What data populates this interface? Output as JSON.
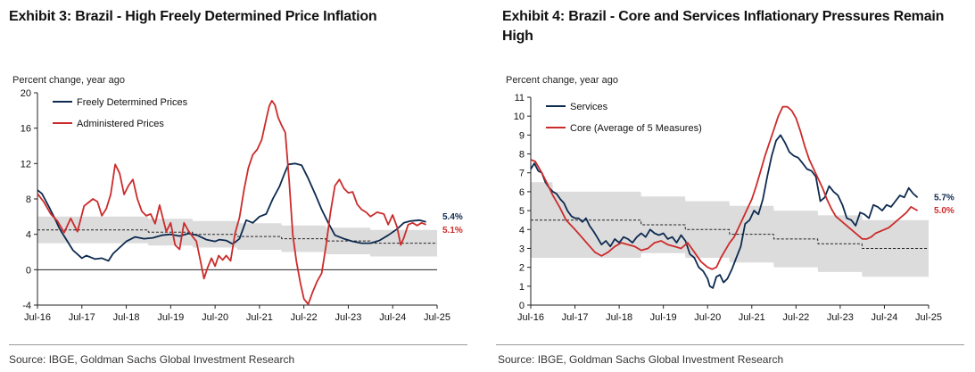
{
  "left": {
    "title": "Exhibit 3: Brazil - High Freely Determined Price Inflation",
    "units": "Percent change, year ago",
    "source": "Source: IBGE, Goldman Sachs Global Investment Research"
  },
  "right": {
    "title": "Exhibit 4: Brazil - Core and Services Inflationary Pressures Remain High",
    "units": "Percent change, year ago",
    "source": "Source: IBGE, Goldman Sachs Global Investment Research"
  },
  "chart_data": [
    {
      "type": "line",
      "title": "Exhibit 3: Brazil - High Freely Determined Price Inflation",
      "ylabel": "Percent change, year ago",
      "ylim": [
        -4,
        20
      ],
      "yticks": [
        -4,
        0,
        4,
        8,
        12,
        16,
        20
      ],
      "xlim": [
        2016.5,
        2025.5
      ],
      "xticks": [
        2016.5,
        2017.5,
        2018.5,
        2019.5,
        2020.5,
        2021.5,
        2022.5,
        2023.5,
        2024.5,
        2025.5
      ],
      "xticklabels": [
        "Jul-16",
        "Jul-17",
        "Jul-18",
        "Jul-19",
        "Jul-20",
        "Jul-21",
        "Jul-22",
        "Jul-23",
        "Jul-24",
        "Jul-25"
      ],
      "legend": "top-left",
      "band": {
        "x": [
          2016.5,
          2016.99,
          2017.0,
          2017.99,
          2018.0,
          2018.99,
          2019.0,
          2019.99,
          2020.0,
          2020.99,
          2021.0,
          2021.99,
          2022.0,
          2022.99,
          2023.0,
          2023.99,
          2024.0,
          2025.5
        ],
        "lower": [
          3.0,
          3.0,
          3.0,
          3.0,
          3.0,
          3.0,
          2.75,
          2.75,
          2.5,
          2.5,
          2.25,
          2.25,
          2.0,
          2.0,
          1.75,
          1.75,
          1.5,
          1.5
        ],
        "upper": [
          6.0,
          6.0,
          6.0,
          6.0,
          6.0,
          6.0,
          5.75,
          5.75,
          5.5,
          5.5,
          5.25,
          5.25,
          5.0,
          5.0,
          4.75,
          4.75,
          4.5,
          4.5
        ]
      },
      "target": {
        "x": [
          2016.5,
          2016.99,
          2017.0,
          2017.99,
          2018.0,
          2018.99,
          2019.0,
          2019.99,
          2020.0,
          2020.99,
          2021.0,
          2021.99,
          2022.0,
          2022.99,
          2023.0,
          2023.99,
          2024.0,
          2025.5
        ],
        "values": [
          4.5,
          4.5,
          4.5,
          4.5,
          4.5,
          4.5,
          4.25,
          4.25,
          4.0,
          4.0,
          3.75,
          3.75,
          3.5,
          3.5,
          3.25,
          3.25,
          3.0,
          3.0
        ]
      },
      "series": [
        {
          "name": "Freely Determined Prices",
          "color": "#0d2a4f",
          "x": [
            2016.5,
            2016.6,
            2016.75,
            2016.9,
            2017.0,
            2017.15,
            2017.3,
            2017.5,
            2017.6,
            2017.8,
            2017.95,
            2018.1,
            2018.2,
            2018.35,
            2018.5,
            2018.7,
            2018.9,
            2019.1,
            2019.3,
            2019.5,
            2019.7,
            2019.9,
            2020.1,
            2020.3,
            2020.5,
            2020.6,
            2020.75,
            2020.9,
            2021.05,
            2021.2,
            2021.35,
            2021.5,
            2021.65,
            2021.8,
            2021.95,
            2022.05,
            2022.15,
            2022.3,
            2022.45,
            2022.6,
            2022.75,
            2022.9,
            2023.05,
            2023.2,
            2023.4,
            2023.6,
            2023.8,
            2024.0,
            2024.2,
            2024.4,
            2024.6,
            2024.75,
            2024.9,
            2025.1,
            2025.25
          ],
          "values": [
            9.0,
            8.6,
            7.2,
            5.7,
            4.6,
            3.4,
            2.2,
            1.3,
            1.6,
            1.2,
            1.3,
            1.0,
            1.8,
            2.5,
            3.2,
            3.7,
            3.5,
            3.6,
            3.9,
            4.0,
            3.8,
            4.1,
            3.9,
            3.4,
            3.2,
            3.4,
            3.3,
            2.9,
            3.5,
            5.6,
            5.3,
            6.0,
            6.3,
            8.0,
            9.4,
            10.7,
            11.9,
            12.0,
            11.8,
            10.3,
            8.6,
            6.8,
            5.3,
            3.9,
            3.5,
            3.2,
            3.0,
            3.0,
            3.3,
            3.9,
            4.6,
            5.3,
            5.5,
            5.6,
            5.4
          ]
        },
        {
          "name": "Administered Prices",
          "color": "#cc2b2b",
          "x": [
            2016.5,
            2016.65,
            2016.8,
            2016.95,
            2017.1,
            2017.25,
            2017.4,
            2017.55,
            2017.65,
            2017.75,
            2017.85,
            2017.95,
            2018.05,
            2018.15,
            2018.25,
            2018.35,
            2018.45,
            2018.55,
            2018.65,
            2018.75,
            2018.85,
            2018.95,
            2019.05,
            2019.15,
            2019.25,
            2019.4,
            2019.5,
            2019.6,
            2019.7,
            2019.8,
            2019.9,
            2020.0,
            2020.08,
            2020.17,
            2020.25,
            2020.33,
            2020.42,
            2020.5,
            2020.58,
            2020.67,
            2020.75,
            2020.85,
            2020.95,
            2021.05,
            2021.15,
            2021.25,
            2021.35,
            2021.45,
            2021.55,
            2021.65,
            2021.72,
            2021.78,
            2021.85,
            2021.92,
            2022.0,
            2022.08,
            2022.17,
            2022.25,
            2022.33,
            2022.42,
            2022.5,
            2022.6,
            2022.7,
            2022.8,
            2022.9,
            2023.0,
            2023.1,
            2023.2,
            2023.3,
            2023.4,
            2023.5,
            2023.6,
            2023.7,
            2023.8,
            2023.9,
            2024.0,
            2024.15,
            2024.3,
            2024.4,
            2024.5,
            2024.6,
            2024.68,
            2024.75,
            2024.85,
            2024.95,
            2025.05,
            2025.15,
            2025.25
          ],
          "values": [
            8.6,
            7.6,
            6.3,
            5.5,
            4.2,
            5.8,
            4.3,
            7.2,
            7.6,
            8.0,
            7.7,
            6.1,
            6.9,
            8.5,
            11.9,
            10.9,
            8.5,
            9.5,
            10.2,
            8.0,
            6.6,
            6.1,
            6.3,
            5.2,
            7.3,
            4.3,
            5.3,
            2.8,
            2.3,
            5.3,
            4.4,
            3.7,
            3.2,
            1.0,
            -1.0,
            0.2,
            1.3,
            0.4,
            1.6,
            1.1,
            1.6,
            1.0,
            4.1,
            5.9,
            9.0,
            11.5,
            13.0,
            13.6,
            14.7,
            17.0,
            18.5,
            19.1,
            18.6,
            17.2,
            16.3,
            15.5,
            10.0,
            4.0,
            1.0,
            -1.5,
            -3.3,
            -3.9,
            -2.5,
            -1.3,
            -0.4,
            2.8,
            6.5,
            9.5,
            10.2,
            9.2,
            8.7,
            8.8,
            7.4,
            6.8,
            6.5,
            6.0,
            6.5,
            6.3,
            5.1,
            6.2,
            4.8,
            2.8,
            3.6,
            5.1,
            5.3,
            5.0,
            5.3,
            5.1
          ]
        }
      ],
      "end_labels": [
        {
          "text": "5.4%",
          "color": "#0d2a4f"
        },
        {
          "text": "5.1%",
          "color": "#cc2b2b"
        }
      ]
    },
    {
      "type": "line",
      "title": "Exhibit 4: Brazil - Core and Services Inflationary Pressures Remain High",
      "ylabel": "Percent change, year ago",
      "ylim": [
        0,
        11
      ],
      "yticks": [
        0,
        1,
        2,
        3,
        4,
        5,
        6,
        7,
        8,
        9,
        10,
        11
      ],
      "xlim": [
        2016.5,
        2025.5
      ],
      "xticks": [
        2016.5,
        2017.5,
        2018.5,
        2019.5,
        2020.5,
        2021.5,
        2022.5,
        2023.5,
        2024.5,
        2025.5
      ],
      "xticklabels": [
        "Jul-16",
        "Jul-17",
        "Jul-18",
        "Jul-19",
        "Jul-20",
        "Jul-21",
        "Jul-22",
        "Jul-23",
        "Jul-24",
        "Jul-25"
      ],
      "legend": "top-left",
      "band": {
        "x": [
          2016.5,
          2016.99,
          2017.0,
          2017.99,
          2018.0,
          2018.99,
          2019.0,
          2019.99,
          2020.0,
          2020.99,
          2021.0,
          2021.99,
          2022.0,
          2022.99,
          2023.0,
          2023.99,
          2024.0,
          2025.5
        ],
        "lower": [
          2.5,
          2.5,
          2.5,
          2.5,
          2.5,
          2.5,
          2.75,
          2.75,
          2.5,
          2.5,
          2.25,
          2.25,
          2.0,
          2.0,
          1.75,
          1.75,
          1.5,
          1.5
        ],
        "upper": [
          6.5,
          6.5,
          6.0,
          6.0,
          6.0,
          6.0,
          5.75,
          5.75,
          5.5,
          5.5,
          5.25,
          5.25,
          5.0,
          5.0,
          4.75,
          4.75,
          4.5,
          4.5
        ]
      },
      "target": {
        "x": [
          2016.5,
          2016.99,
          2017.0,
          2017.99,
          2018.0,
          2018.99,
          2019.0,
          2019.99,
          2020.0,
          2020.99,
          2021.0,
          2021.99,
          2022.0,
          2022.99,
          2023.0,
          2023.99,
          2024.0,
          2025.5
        ],
        "values": [
          4.5,
          4.5,
          4.5,
          4.5,
          4.5,
          4.5,
          4.25,
          4.25,
          4.0,
          4.0,
          3.75,
          3.75,
          3.5,
          3.5,
          3.25,
          3.25,
          3.0,
          3.0
        ]
      },
      "series": [
        {
          "name": "Services",
          "color": "#0d2a4f",
          "x": [
            2016.5,
            2016.58,
            2016.67,
            2016.75,
            2016.83,
            2016.92,
            2017.0,
            2017.08,
            2017.17,
            2017.25,
            2017.33,
            2017.42,
            2017.5,
            2017.58,
            2017.67,
            2017.75,
            2017.83,
            2017.92,
            2018.0,
            2018.1,
            2018.2,
            2018.3,
            2018.4,
            2018.5,
            2018.6,
            2018.7,
            2018.8,
            2018.9,
            2019.0,
            2019.1,
            2019.2,
            2019.3,
            2019.4,
            2019.5,
            2019.6,
            2019.7,
            2019.8,
            2019.9,
            2020.0,
            2020.1,
            2020.2,
            2020.3,
            2020.4,
            2020.5,
            2020.55,
            2020.62,
            2020.7,
            2020.78,
            2020.86,
            2020.95,
            2021.05,
            2021.15,
            2021.25,
            2021.35,
            2021.45,
            2021.55,
            2021.65,
            2021.75,
            2021.85,
            2021.95,
            2022.05,
            2022.15,
            2022.25,
            2022.35,
            2022.45,
            2022.55,
            2022.65,
            2022.75,
            2022.85,
            2022.95,
            2023.05,
            2023.15,
            2023.25,
            2023.35,
            2023.45,
            2023.55,
            2023.65,
            2023.75,
            2023.85,
            2023.95,
            2024.05,
            2024.15,
            2024.25,
            2024.35,
            2024.45,
            2024.55,
            2024.65,
            2024.75,
            2024.85,
            2024.95,
            2025.05,
            2025.15,
            2025.25
          ],
          "values": [
            7.2,
            7.5,
            7.1,
            7.0,
            6.5,
            6.2,
            6.0,
            5.9,
            5.6,
            5.4,
            5.0,
            4.7,
            4.6,
            4.6,
            4.4,
            4.6,
            4.2,
            3.9,
            3.6,
            3.2,
            3.4,
            3.1,
            3.5,
            3.3,
            3.6,
            3.5,
            3.3,
            3.6,
            3.8,
            3.6,
            4.0,
            3.8,
            3.7,
            3.8,
            3.5,
            3.6,
            3.3,
            3.7,
            3.4,
            2.7,
            2.5,
            2.0,
            1.8,
            1.4,
            1.0,
            0.9,
            1.5,
            1.6,
            1.2,
            1.4,
            1.9,
            2.5,
            3.1,
            4.3,
            4.5,
            5.0,
            4.8,
            5.6,
            6.8,
            7.9,
            8.7,
            9.0,
            8.6,
            8.1,
            7.9,
            7.8,
            7.5,
            7.2,
            7.1,
            6.8,
            5.5,
            5.7,
            6.3,
            6.0,
            5.8,
            5.3,
            4.6,
            4.5,
            4.2,
            4.9,
            4.8,
            4.6,
            5.3,
            5.2,
            5.0,
            5.3,
            5.2,
            5.5,
            5.8,
            5.7,
            6.2,
            5.9,
            5.7
          ]
        },
        {
          "name": "Core (Average of 5 Measures)",
          "color": "#cc2b2b",
          "x": [
            2016.5,
            2016.6,
            2016.75,
            2016.9,
            2017.0,
            2017.15,
            2017.3,
            2017.5,
            2017.65,
            2017.8,
            2017.95,
            2018.1,
            2018.25,
            2018.4,
            2018.55,
            2018.7,
            2018.85,
            2019.0,
            2019.15,
            2019.3,
            2019.45,
            2019.6,
            2019.75,
            2019.9,
            2020.05,
            2020.2,
            2020.35,
            2020.5,
            2020.6,
            2020.7,
            2020.8,
            2020.9,
            2021.0,
            2021.1,
            2021.2,
            2021.3,
            2021.4,
            2021.5,
            2021.6,
            2021.7,
            2021.8,
            2021.9,
            2022.0,
            2022.1,
            2022.2,
            2022.3,
            2022.4,
            2022.5,
            2022.6,
            2022.7,
            2022.8,
            2022.9,
            2023.0,
            2023.1,
            2023.2,
            2023.3,
            2023.4,
            2023.5,
            2023.6,
            2023.7,
            2023.8,
            2023.9,
            2024.0,
            2024.1,
            2024.2,
            2024.3,
            2024.4,
            2024.5,
            2024.6,
            2024.7,
            2024.8,
            2024.9,
            2025.0,
            2025.1,
            2025.25
          ],
          "values": [
            7.7,
            7.6,
            7.0,
            6.3,
            5.8,
            5.2,
            4.5,
            4.0,
            3.6,
            3.2,
            2.8,
            2.6,
            2.8,
            3.1,
            3.3,
            3.2,
            3.1,
            2.9,
            3.0,
            3.3,
            3.4,
            3.2,
            3.1,
            3.0,
            3.3,
            2.8,
            2.3,
            2.0,
            1.9,
            2.0,
            2.5,
            2.9,
            3.3,
            3.6,
            4.1,
            4.6,
            5.1,
            5.6,
            6.3,
            7.1,
            7.9,
            8.6,
            9.3,
            10.0,
            10.5,
            10.5,
            10.3,
            9.9,
            9.2,
            8.4,
            7.7,
            7.2,
            6.7,
            6.2,
            5.6,
            5.1,
            4.7,
            4.5,
            4.3,
            4.1,
            3.9,
            3.7,
            3.5,
            3.5,
            3.6,
            3.8,
            3.9,
            4.0,
            4.1,
            4.3,
            4.5,
            4.7,
            4.9,
            5.2,
            5.0
          ]
        }
      ],
      "end_labels": [
        {
          "text": "5.7%",
          "color": "#0d2a4f"
        },
        {
          "text": "5.0%",
          "color": "#cc2b2b"
        }
      ]
    }
  ]
}
